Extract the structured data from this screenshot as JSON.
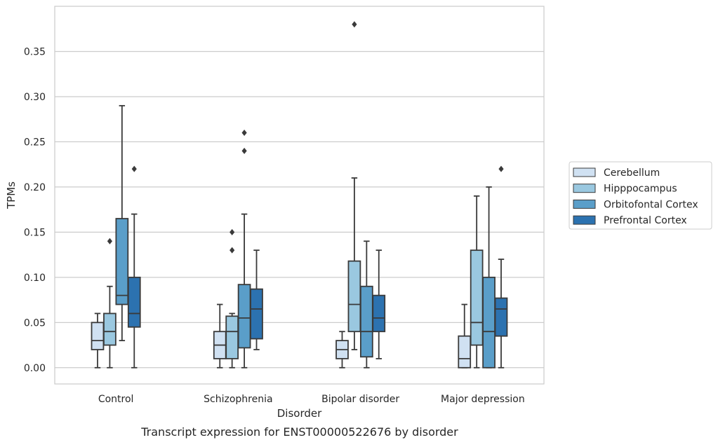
{
  "chart_data": {
    "type": "box",
    "xlabel": "Disorder",
    "ylabel": "TPMs",
    "caption": "Transcript expression for ENST00000522676 by disorder",
    "ylim": [
      -0.018,
      0.4
    ],
    "yticks": [
      0.0,
      0.05,
      0.1,
      0.15,
      0.2,
      0.25,
      0.3,
      0.35
    ],
    "ytick_labels": [
      "0.00",
      "0.05",
      "0.10",
      "0.15",
      "0.20",
      "0.25",
      "0.30",
      "0.35"
    ],
    "grid": "horizontal",
    "legend_position": "right",
    "categories": [
      "Control",
      "Schizophrenia",
      "Bipolar disorder",
      "Major depression"
    ],
    "series": [
      {
        "name": "Cerebellum",
        "color": "#d0e1f2",
        "boxes": [
          {
            "whisker_low": 0.0,
            "q1": 0.02,
            "median": 0.03,
            "q3": 0.05,
            "whisker_high": 0.06,
            "outliers": []
          },
          {
            "whisker_low": 0.0,
            "q1": 0.01,
            "median": 0.025,
            "q3": 0.04,
            "whisker_high": 0.07,
            "outliers": []
          },
          {
            "whisker_low": 0.0,
            "q1": 0.01,
            "median": 0.02,
            "q3": 0.03,
            "whisker_high": 0.04,
            "outliers": []
          },
          {
            "whisker_low": 0.0,
            "q1": 0.0,
            "median": 0.01,
            "q3": 0.035,
            "whisker_high": 0.07,
            "outliers": []
          }
        ]
      },
      {
        "name": "Hipppocampus",
        "color": "#9ac8e0",
        "boxes": [
          {
            "whisker_low": 0.0,
            "q1": 0.025,
            "median": 0.04,
            "q3": 0.06,
            "whisker_high": 0.09,
            "outliers": [
              0.14
            ]
          },
          {
            "whisker_low": 0.0,
            "q1": 0.01,
            "median": 0.04,
            "q3": 0.057,
            "whisker_high": 0.06,
            "outliers": [
              0.13,
              0.15
            ]
          },
          {
            "whisker_low": 0.02,
            "q1": 0.04,
            "median": 0.07,
            "q3": 0.118,
            "whisker_high": 0.21,
            "outliers": [
              0.38
            ]
          },
          {
            "whisker_low": 0.0,
            "q1": 0.025,
            "median": 0.05,
            "q3": 0.13,
            "whisker_high": 0.19,
            "outliers": []
          }
        ]
      },
      {
        "name": "Orbitofontal Cortex",
        "color": "#5a9ec9",
        "boxes": [
          {
            "whisker_low": 0.03,
            "q1": 0.07,
            "median": 0.08,
            "q3": 0.165,
            "whisker_high": 0.29,
            "outliers": []
          },
          {
            "whisker_low": 0.0,
            "q1": 0.022,
            "median": 0.055,
            "q3": 0.092,
            "whisker_high": 0.17,
            "outliers": [
              0.24,
              0.26
            ]
          },
          {
            "whisker_low": 0.0,
            "q1": 0.012,
            "median": 0.04,
            "q3": 0.09,
            "whisker_high": 0.14,
            "outliers": []
          },
          {
            "whisker_low": 0.0,
            "q1": 0.0,
            "median": 0.04,
            "q3": 0.1,
            "whisker_high": 0.2,
            "outliers": []
          }
        ]
      },
      {
        "name": "Prefrontal Cortex",
        "color": "#2c72b0",
        "boxes": [
          {
            "whisker_low": 0.0,
            "q1": 0.045,
            "median": 0.06,
            "q3": 0.1,
            "whisker_high": 0.17,
            "outliers": [
              0.22
            ]
          },
          {
            "whisker_low": 0.02,
            "q1": 0.032,
            "median": 0.065,
            "q3": 0.087,
            "whisker_high": 0.13,
            "outliers": []
          },
          {
            "whisker_low": 0.01,
            "q1": 0.04,
            "median": 0.055,
            "q3": 0.08,
            "whisker_high": 0.13,
            "outliers": []
          },
          {
            "whisker_low": 0.0,
            "q1": 0.035,
            "median": 0.065,
            "q3": 0.077,
            "whisker_high": 0.12,
            "outliers": [
              0.22
            ]
          }
        ]
      }
    ]
  }
}
